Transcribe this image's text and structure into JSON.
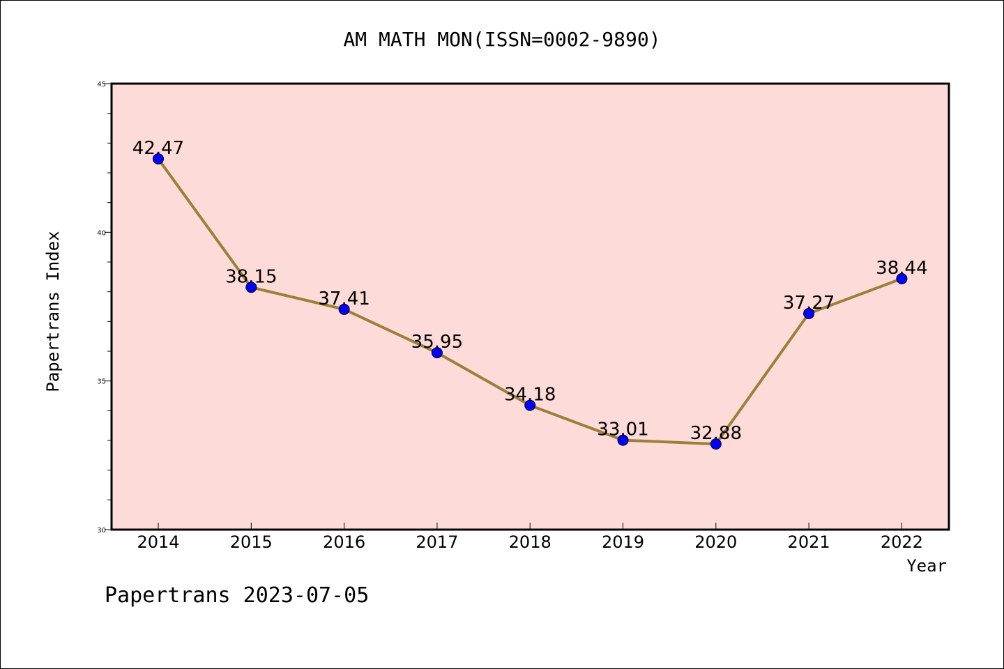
{
  "chart_data": {
    "type": "line",
    "title": "AM MATH MON(ISSN=0002-9890)",
    "xlabel": "Year",
    "ylabel": "Papertrans Index",
    "footer": "Papertrans 2023-07-05",
    "x": [
      "2014",
      "2015",
      "2016",
      "2017",
      "2018",
      "2019",
      "2020",
      "2021",
      "2022"
    ],
    "series": [
      {
        "values": [
          42.47,
          38.15,
          37.41,
          35.95,
          34.18,
          33.01,
          32.88,
          37.27,
          38.44
        ],
        "labels": [
          "42.47",
          "38.15",
          "37.41",
          "35.95",
          "34.18",
          "33.01",
          "32.88",
          "37.27",
          "38.44"
        ]
      }
    ],
    "ylim": [
      30,
      45
    ],
    "yticks": [
      "30",
      "35",
      "40",
      "45"
    ],
    "grid": false,
    "colors": {
      "plot_background": "#fddbd8",
      "line": "#9b7f3a",
      "marker": "#0000ff"
    }
  }
}
